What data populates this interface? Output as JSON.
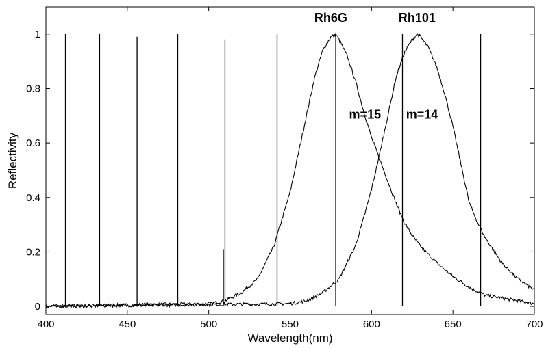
{
  "chart_data": {
    "type": "line",
    "title": "",
    "xlabel": "Wavelength(nm)",
    "ylabel": "Reflectivity",
    "xlim": [
      400,
      700
    ],
    "ylim": [
      -0.03,
      1.1
    ],
    "xticks": [
      400,
      450,
      500,
      550,
      600,
      650,
      700
    ],
    "xtick_labels": [
      "400",
      "450",
      "500",
      "550",
      "600",
      "650",
      "700"
    ],
    "yticks": [
      0,
      0.2,
      0.4,
      0.6,
      0.8,
      1
    ],
    "ytick_labels": [
      "0",
      "0.2",
      "0.4",
      "0.6",
      "0.8",
      "1"
    ],
    "grid": false,
    "series": [
      {
        "x": [
          400,
          500,
          510,
          520,
          530,
          540,
          550,
          555,
          560,
          565,
          570,
          575,
          578,
          580,
          585,
          590,
          595,
          600,
          605,
          610,
          615,
          620,
          625,
          630,
          640,
          650,
          660,
          670,
          680,
          690,
          700
        ],
        "values": [
          0.0,
          0.01,
          0.02,
          0.05,
          0.1,
          0.22,
          0.42,
          0.56,
          0.7,
          0.84,
          0.94,
          0.99,
          1.0,
          0.98,
          0.92,
          0.83,
          0.72,
          0.62,
          0.54,
          0.46,
          0.38,
          0.31,
          0.26,
          0.22,
          0.16,
          0.11,
          0.07,
          0.04,
          0.03,
          0.02,
          0.01
        ]
      },
      {
        "x": [
          400,
          550,
          560,
          570,
          580,
          590,
          595,
          600,
          605,
          610,
          615,
          620,
          625,
          628,
          630,
          635,
          640,
          645,
          650,
          655,
          660,
          665,
          670,
          680,
          690,
          700
        ],
        "values": [
          0.0,
          0.01,
          0.02,
          0.05,
          0.1,
          0.22,
          0.32,
          0.43,
          0.56,
          0.7,
          0.84,
          0.93,
          0.98,
          1.0,
          0.99,
          0.95,
          0.88,
          0.78,
          0.66,
          0.52,
          0.38,
          0.31,
          0.25,
          0.16,
          0.1,
          0.06
        ]
      }
    ],
    "spectral_lines": [
      {
        "x": 412,
        "height": 1.0
      },
      {
        "x": 433,
        "height": 1.0
      },
      {
        "x": 456,
        "height": 0.99
      },
      {
        "x": 481,
        "height": 1.0
      },
      {
        "x": 509,
        "height": 0.21
      },
      {
        "x": 510,
        "height": 0.98
      },
      {
        "x": 542,
        "height": 1.0
      },
      {
        "x": 578,
        "height": 1.0
      },
      {
        "x": 619,
        "height": 1.0
      },
      {
        "x": 667,
        "height": 1.0
      }
    ],
    "annotations": [
      {
        "text": "Rh6G",
        "x": 575,
        "y": 1.045
      },
      {
        "text": "Rh101",
        "x": 628,
        "y": 1.045
      },
      {
        "text": "m=15",
        "x": 596,
        "y": 0.69
      },
      {
        "text": "m=14",
        "x": 631,
        "y": 0.69
      }
    ]
  }
}
